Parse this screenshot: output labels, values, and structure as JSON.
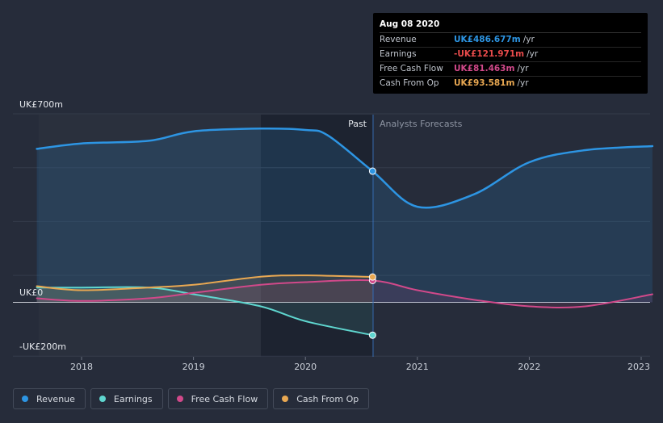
{
  "tooltip": {
    "date": "Aug 08 2020",
    "rows": [
      {
        "label": "Revenue",
        "value": "UK£486.677m",
        "unit": "/yr",
        "color": "#2d95e3"
      },
      {
        "label": "Earnings",
        "value": "-UK£121.971m",
        "unit": "/yr",
        "color": "#e84b4b"
      },
      {
        "label": "Free Cash Flow",
        "value": "UK£81.463m",
        "unit": "/yr",
        "color": "#d1498a"
      },
      {
        "label": "Cash From Op",
        "value": "UK£93.581m",
        "unit": "/yr",
        "color": "#e9a852"
      }
    ]
  },
  "legend": [
    {
      "label": "Revenue",
      "color": "#2d95e3"
    },
    {
      "label": "Earnings",
      "color": "#5fd6cf"
    },
    {
      "label": "Free Cash Flow",
      "color": "#d1498a"
    },
    {
      "label": "Cash From Op",
      "color": "#e9a852"
    }
  ],
  "chart_data": {
    "type": "line",
    "y_axis_labels": [
      "UK£700m",
      "UK£0",
      "-UK£200m"
    ],
    "ylim": [
      -200,
      700
    ],
    "x_ticks": [
      "2018",
      "2019",
      "2020",
      "2021",
      "2022",
      "2023"
    ],
    "regions": {
      "past_label": "Past",
      "forecast_label": "Analysts Forecasts",
      "divider_x": 2020.6
    },
    "grid": true,
    "series": [
      {
        "name": "Revenue",
        "color": "#2d95e3",
        "points": [
          [
            2017.6,
            570
          ],
          [
            2018.0,
            590
          ],
          [
            2018.6,
            600
          ],
          [
            2019.0,
            635
          ],
          [
            2019.6,
            645
          ],
          [
            2020.0,
            640
          ],
          [
            2020.2,
            620
          ],
          [
            2020.6,
            487
          ],
          [
            2021.0,
            355
          ],
          [
            2021.5,
            400
          ],
          [
            2022.0,
            520
          ],
          [
            2022.5,
            565
          ],
          [
            2023.1,
            580
          ]
        ]
      },
      {
        "name": "Earnings",
        "color": "#5fd6cf",
        "points": [
          [
            2017.6,
            55
          ],
          [
            2018.0,
            55
          ],
          [
            2018.6,
            55
          ],
          [
            2019.0,
            30
          ],
          [
            2019.6,
            -15
          ],
          [
            2020.0,
            -70
          ],
          [
            2020.6,
            -122
          ]
        ]
      },
      {
        "name": "Free Cash Flow",
        "color": "#d1498a",
        "points": [
          [
            2017.6,
            15
          ],
          [
            2018.0,
            5
          ],
          [
            2018.6,
            15
          ],
          [
            2019.0,
            35
          ],
          [
            2019.6,
            65
          ],
          [
            2020.0,
            75
          ],
          [
            2020.6,
            81
          ],
          [
            2021.0,
            45
          ],
          [
            2021.5,
            10
          ],
          [
            2022.0,
            -15
          ],
          [
            2022.5,
            -15
          ],
          [
            2023.1,
            30
          ]
        ]
      },
      {
        "name": "Cash From Op",
        "color": "#e9a852",
        "points": [
          [
            2017.6,
            60
          ],
          [
            2018.0,
            45
          ],
          [
            2018.6,
            55
          ],
          [
            2019.0,
            65
          ],
          [
            2019.6,
            95
          ],
          [
            2020.0,
            100
          ],
          [
            2020.6,
            94
          ]
        ]
      }
    ]
  }
}
